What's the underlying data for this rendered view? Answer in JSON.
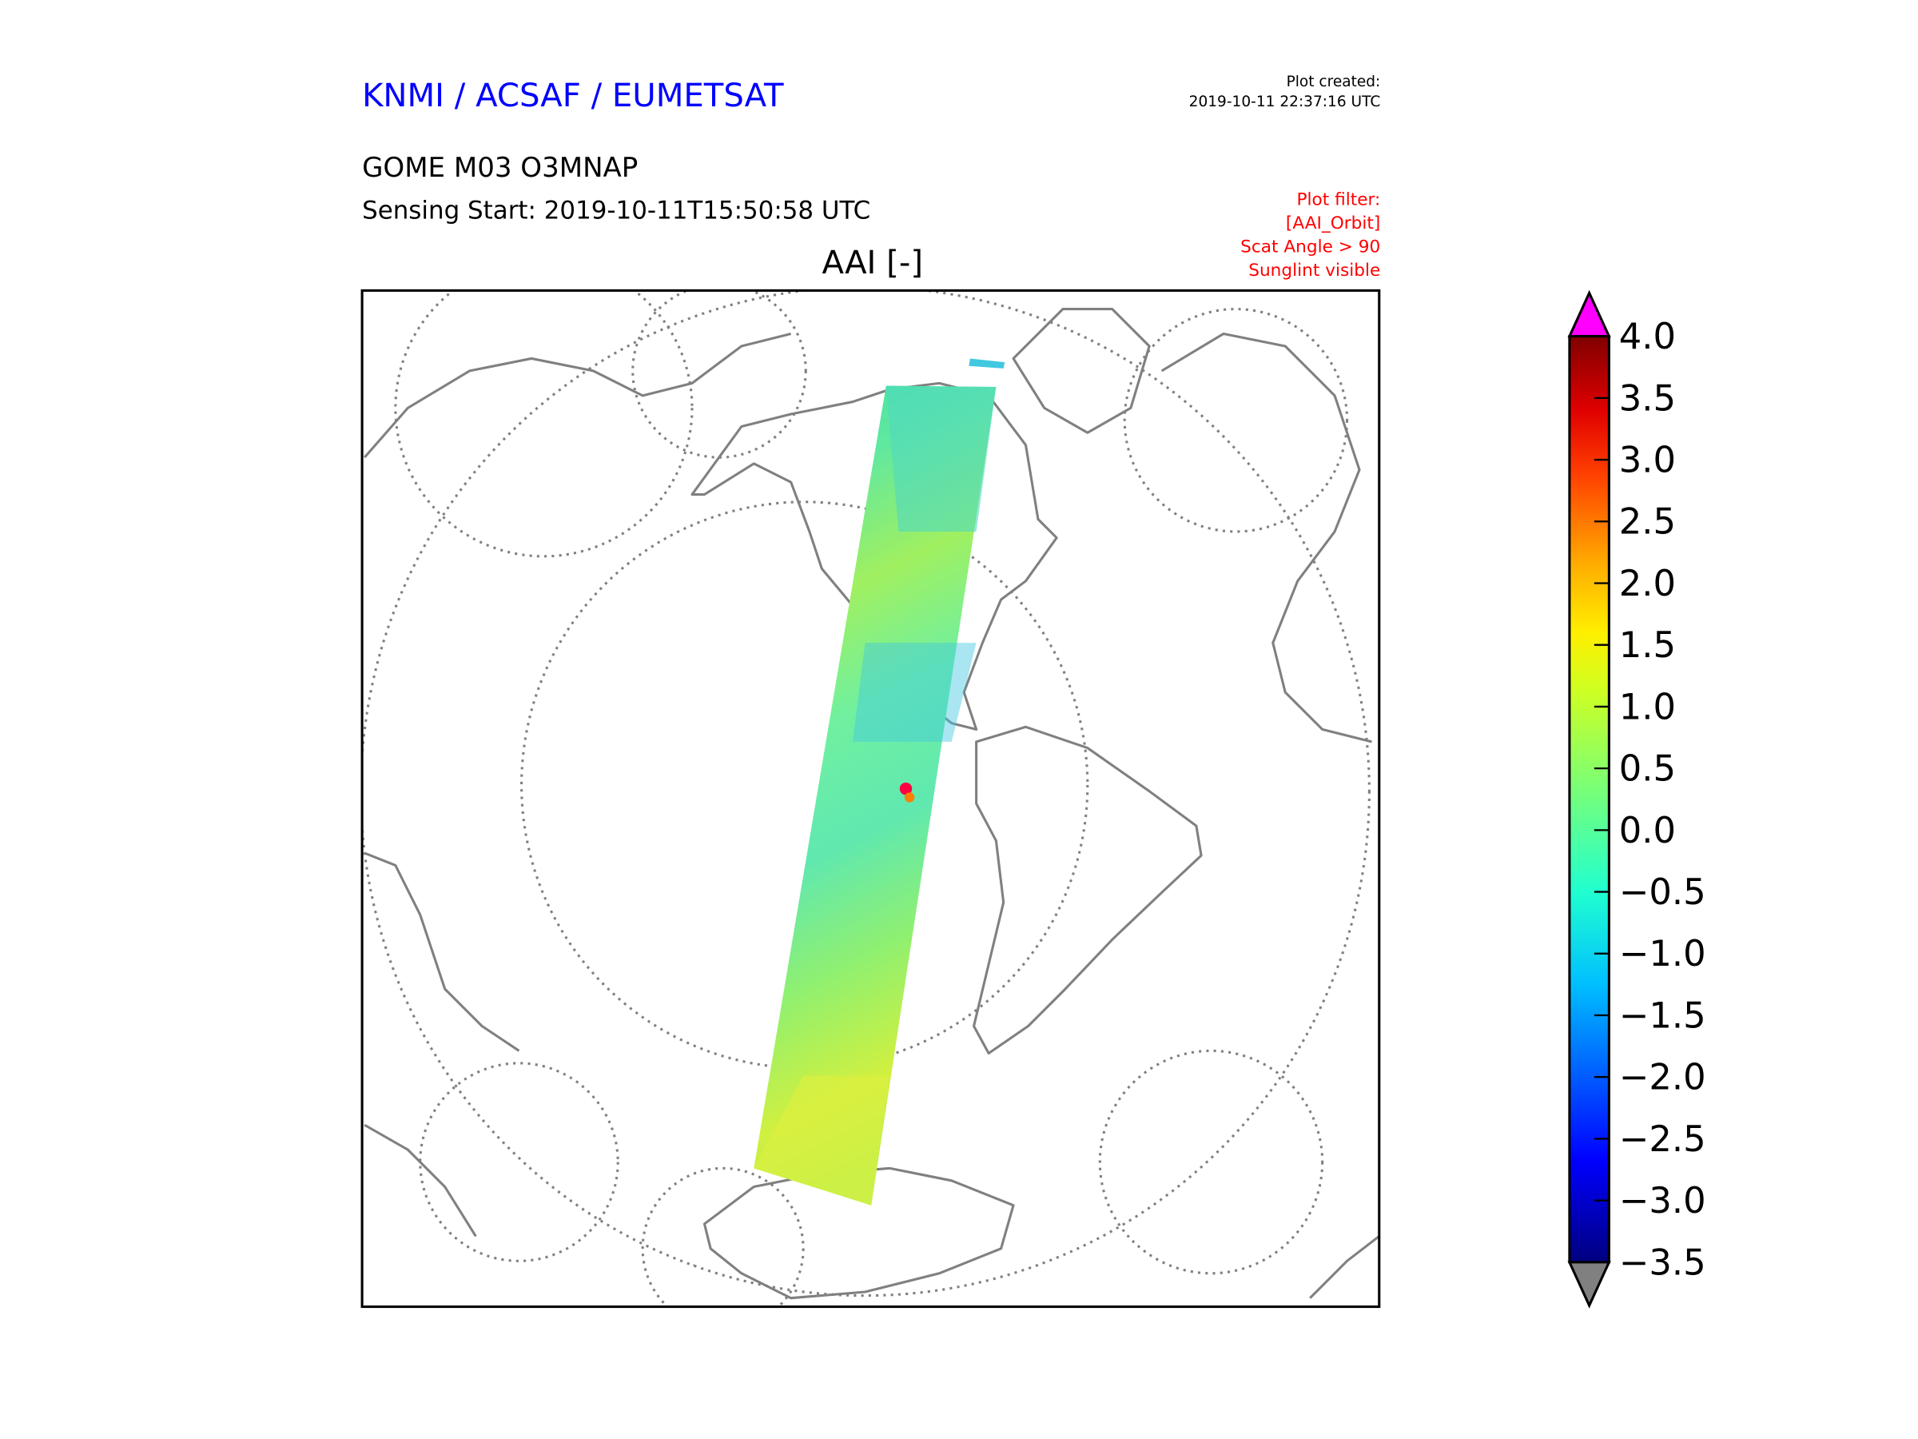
{
  "header": {
    "organization": "KNMI / ACSAF / EUMETSAT",
    "plot_created_label": "Plot created:",
    "plot_created_time": "2019-10-11 22:37:16 UTC",
    "product": "GOME M03 O3MNAP",
    "sensing_start": "Sensing Start: 2019-10-11T15:50:58 UTC",
    "plot_title": "AAI [-]"
  },
  "filter": {
    "lines": [
      "Plot filter:",
      "[AAI_Orbit]",
      "Scat Angle > 90",
      "Sunglint visible"
    ]
  },
  "colors": {
    "organization": "#0000ff",
    "filter": "#ff0000",
    "coastline": "#808080",
    "over_color": "#ff00ff",
    "under_color": "#808080"
  },
  "colorbar": {
    "min": -3.5,
    "max": 4.0,
    "ticks": [
      "4.0",
      "3.5",
      "3.0",
      "2.5",
      "2.0",
      "1.5",
      "1.0",
      "0.5",
      "0.0",
      "−0.5",
      "−1.0",
      "−1.5",
      "−2.0",
      "−2.5",
      "−3.0",
      "−3.5"
    ]
  }
}
